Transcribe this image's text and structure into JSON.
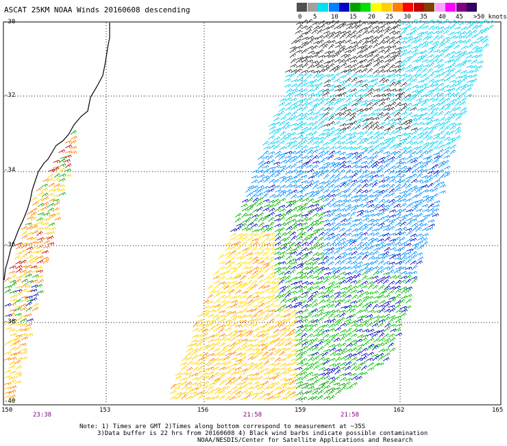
{
  "title": "ASCAT 25KM NOAA Winds 20160608 descending",
  "legend": {
    "colors": [
      "#505050",
      "#a0a0a0",
      "#00e0f0",
      "#0080ff",
      "#0000c0",
      "#00a000",
      "#00e000",
      "#ffff00",
      "#ffd000",
      "#ff8000",
      "#ff0000",
      "#c00000",
      "#804000",
      "#ffa0ff",
      "#ff00ff",
      "#800080",
      "#300060"
    ],
    "labels": [
      "0",
      "5",
      "10",
      "15",
      "20",
      "25",
      "30",
      "35",
      "40",
      "45",
      ">50 knots"
    ]
  },
  "axes": {
    "lon_labels": [
      "150",
      "153",
      "156",
      "159",
      "162",
      "165"
    ],
    "lat_labels": [
      "-30",
      "-32",
      "-34",
      "-36",
      "-38",
      "-40"
    ]
  },
  "times": [
    "23:38",
    "21:58",
    "21:58"
  ],
  "notes": [
    "Note: 1) Times are GMT 2)Times along bottom correspond to measurement at ~35S",
    "3)Data buffer is 22 hrs from 20160608 4) Black wind barbs indicate possible contamination",
    "NOAA/NESDIS/Center for Satellite Applications and Research"
  ]
}
